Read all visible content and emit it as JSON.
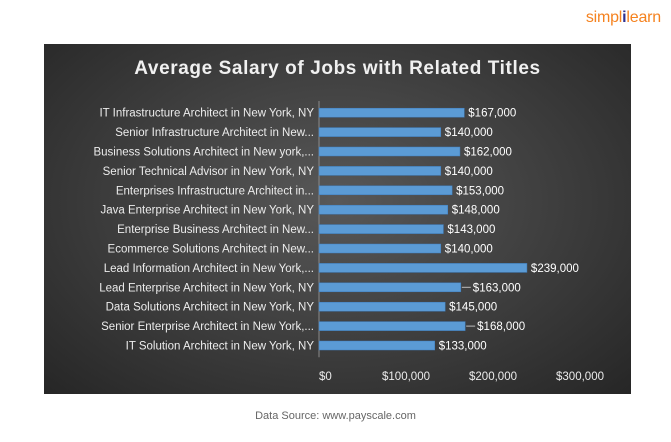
{
  "brand": {
    "logo_left": "simpl",
    "logo_sep": "i",
    "logo_right": "learn",
    "accent": "#f5821f",
    "sep_color": "#2e3192"
  },
  "source": "Data Source: www.payscale.com",
  "chart_data": {
    "type": "bar",
    "orientation": "horizontal",
    "title": "Average Salary of Jobs with Related Titles",
    "xlabel": "",
    "ylabel": "",
    "xlim": [
      0,
      300000
    ],
    "x_ticks": [
      0,
      100000,
      200000,
      300000
    ],
    "x_tick_labels": [
      "$0",
      "$100,000",
      "$200,000",
      "$300,000"
    ],
    "grid": false,
    "legend": "none",
    "bar_color": "#5b9bd5",
    "categories": [
      "IT Infrastructure Architect in New York, NY",
      "Senior Infrastructure Architect in New...",
      "Business Solutions Architect in New york,...",
      "Senior Technical Advisor in New York, NY",
      "Enterprises Infrastructure Architect in...",
      "Java Enterprise Architect in New York, NY",
      "Enterprise Business Architect in New...",
      "Ecommerce Solutions Architect in New...",
      "Lead Information Architect in New York,...",
      "Lead Enterprise Architect in New York, NY",
      "Data Solutions Architect in New York, NY",
      "Senior Enterprise Architect in New York,...",
      "IT Solution Architect in New York, NY"
    ],
    "values": [
      167000,
      140000,
      162000,
      140000,
      153000,
      148000,
      143000,
      140000,
      239000,
      163000,
      145000,
      168000,
      133000
    ],
    "data_labels": [
      "$167,000",
      "$140,000",
      "$162,000",
      "$140,000",
      "$153,000",
      "$148,000",
      "$143,000",
      "$140,000",
      "$239,000",
      "$163,000",
      "$145,000",
      "$168,000",
      "$133,000"
    ],
    "leader_lines_on": [
      "$163,000",
      "$168,000"
    ]
  }
}
